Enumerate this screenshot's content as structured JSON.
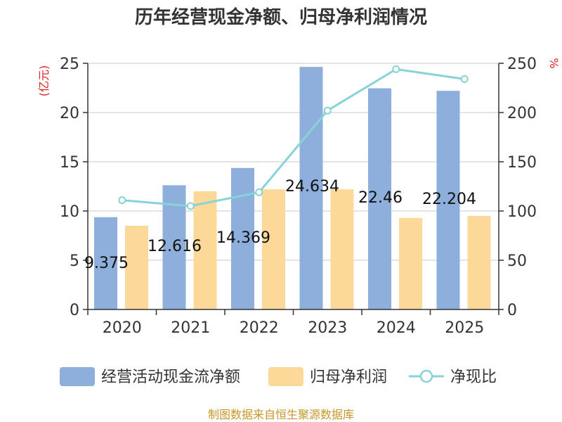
{
  "chart_data": {
    "type": "bar",
    "title": "历年经营现金净额、归母净利润情况",
    "categories": [
      "2020",
      "2021",
      "2022",
      "2023",
      "2024",
      "2025"
    ],
    "series": [
      {
        "name": "经营活动现金流净额",
        "type": "bar",
        "axis": "left",
        "color": "#8eaedc",
        "values": [
          9.375,
          12.616,
          14.369,
          24.634,
          22.46,
          22.204
        ],
        "labels": [
          "9.375",
          "12.616",
          "14.369",
          "24.634",
          "22.46",
          "22.204"
        ]
      },
      {
        "name": "归母净利润",
        "type": "bar",
        "axis": "left",
        "color": "#fdd999",
        "values": [
          8.5,
          12.0,
          12.2,
          12.2,
          9.3,
          9.5
        ]
      },
      {
        "name": "净现比",
        "type": "line",
        "axis": "right",
        "color": "#86d3d8",
        "values": [
          111,
          105,
          119,
          202,
          244,
          234
        ]
      }
    ],
    "ylabel_left": "(亿元)",
    "ylabel_right": "%",
    "ylim_left": [
      0,
      25
    ],
    "yticks_left": [
      "0",
      "5",
      "10",
      "15",
      "20",
      "25"
    ],
    "ylim_right": [
      0,
      250
    ],
    "yticks_right": [
      "0",
      "50",
      "100",
      "150",
      "200",
      "250"
    ],
    "grid": true,
    "legend_position": "bottom"
  },
  "source_text": "制图数据来自恒生聚源数据库"
}
